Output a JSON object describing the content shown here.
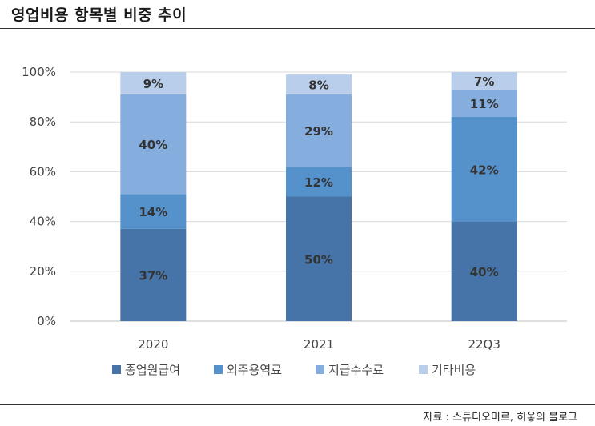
{
  "header": {
    "title": "영업비용 항목별 비중 추이"
  },
  "footer": {
    "source": "자료 : 스튜디오미르, 히읗의 블로그"
  },
  "chart_data": {
    "type": "bar",
    "stacked": true,
    "title": "",
    "xlabel": "",
    "ylabel": "",
    "ylim": [
      0,
      100
    ],
    "y_unit": "%",
    "y_ticks": [
      "0%",
      "20%",
      "40%",
      "60%",
      "80%",
      "100%"
    ],
    "grid": true,
    "legend_position": "bottom",
    "categories": [
      "2020",
      "2021",
      "22Q3"
    ],
    "series": [
      {
        "name": "종업원급여",
        "color": "#4674A8",
        "values": [
          37,
          50,
          40
        ],
        "labels": [
          "37%",
          "50%",
          "40%"
        ]
      },
      {
        "name": "외주용역료",
        "color": "#5592CC",
        "values": [
          14,
          12,
          42
        ],
        "labels": [
          "14%",
          "12%",
          "42%"
        ]
      },
      {
        "name": "지급수수료",
        "color": "#85ADDE",
        "values": [
          40,
          29,
          11
        ],
        "labels": [
          "40%",
          "29%",
          "11%"
        ]
      },
      {
        "name": "기타비용",
        "color": "#B9CEEA",
        "values": [
          9,
          8,
          7
        ],
        "labels": [
          "9%",
          "8%",
          "7%"
        ]
      }
    ]
  }
}
